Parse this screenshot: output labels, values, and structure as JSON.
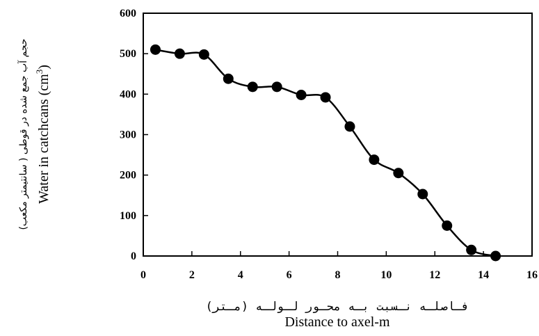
{
  "chart_data": {
    "type": "line",
    "smooth": true,
    "xlabel_fa": "فـاصلـه نـسبت بـه محـور لـولـه (مـتر)",
    "xlabel": "Distance to axel-m",
    "ylabel_fa": "حجم آب جمع شده در قوطی ( سانتیمتر مکعب)",
    "ylabel": "Water in catchcans (cm",
    "ylabel_sup": "3",
    "ylabel_end": ")",
    "xlim": [
      0,
      16
    ],
    "ylim": [
      0,
      600
    ],
    "x_ticks": [
      "0",
      "2",
      "4",
      "6",
      "8",
      "10",
      "12",
      "14",
      "16"
    ],
    "y_ticks": [
      "0",
      "100",
      "200",
      "300",
      "400",
      "500",
      "600"
    ],
    "grid": false,
    "legend": "none",
    "marker": "filled-circle",
    "color": "#000000",
    "series": [
      {
        "x": [
          0.5,
          1.5,
          2.5,
          3.5,
          4.5,
          5.5,
          6.5,
          7.5,
          8.5,
          9.5,
          10.5,
          11.5,
          12.5,
          13.5,
          14.5
        ],
        "values": [
          510,
          500,
          498,
          438,
          418,
          418,
          398,
          392,
          320,
          238,
          205,
          153,
          75,
          15,
          0
        ]
      }
    ]
  }
}
